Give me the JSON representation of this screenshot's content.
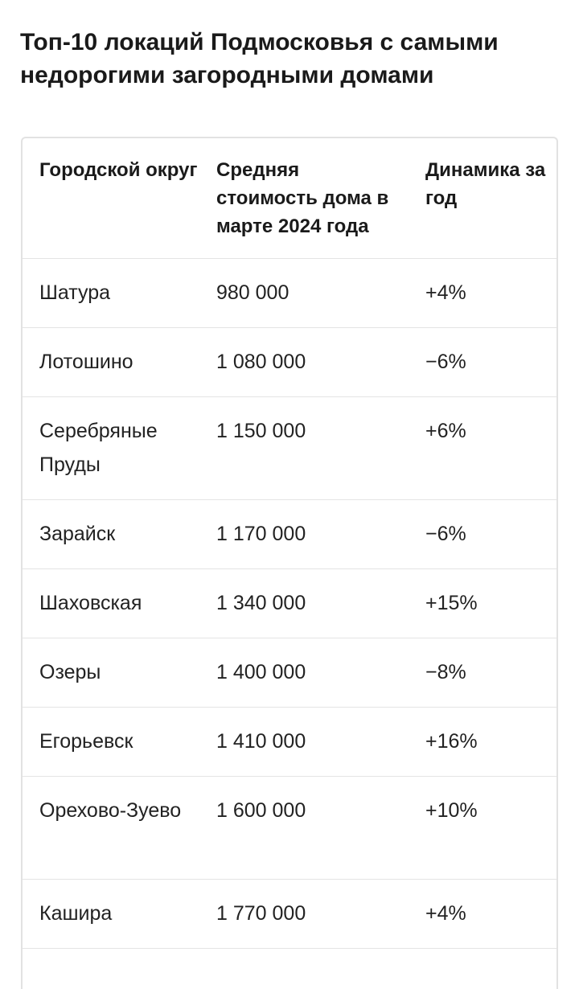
{
  "title": "Топ-10 локаций Подмосковья с самыми недорогими загородными домами",
  "table": {
    "headers": [
      "Городской округ",
      "Средняя стоимость дома в марте 2024 года",
      "Динамика за год"
    ],
    "rows": [
      {
        "district": "Шатура",
        "price": "980 000",
        "change": "+4%"
      },
      {
        "district": "Лотошино",
        "price": "1 080 000",
        "change": "−6%"
      },
      {
        "district": "Серебряные Пруды",
        "price": "1 150 000",
        "change": "+6%"
      },
      {
        "district": "Зарайск",
        "price": "1 170 000",
        "change": "−6%"
      },
      {
        "district": "Шаховская",
        "price": "1 340 000",
        "change": "+15%"
      },
      {
        "district": "Озеры",
        "price": "1 400 000",
        "change": "−8%"
      },
      {
        "district": "Егорьевск",
        "price": "1 410 000",
        "change": "+16%"
      },
      {
        "district": "Орехово-Зуево",
        "price": "1 600 000",
        "change": "+10%"
      },
      {
        "district": "Кашира",
        "price": "1 770 000",
        "change": "+4%"
      },
      {
        "district": "",
        "price": "",
        "change": ""
      }
    ]
  }
}
